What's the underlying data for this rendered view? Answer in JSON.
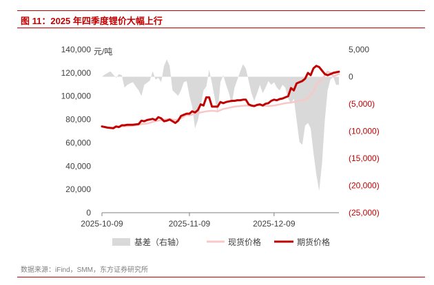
{
  "title": "图 11：2025 年四季度锂价大幅上行",
  "source": "数据来源：iFind，SMM，东方证券研究所",
  "colors": {
    "accent": "#c00000",
    "basis": "#d9d9d9",
    "spot": "#f8c8c8",
    "futures": "#c00000",
    "negative": "#c00000"
  },
  "chart_data": {
    "type": "line",
    "title": "图 11：2025 年四季度锂价大幅上行",
    "unit_label": "元/吨",
    "x_ticks": [
      "2025-10-09",
      "2025-11-09",
      "2025-12-09"
    ],
    "x_range_days": [
      0,
      84
    ],
    "y_left": {
      "min": 0,
      "max": 140000,
      "ticks": [
        "0",
        "20,000",
        "40,000",
        "60,000",
        "80,000",
        "100,000",
        "120,000",
        "140,000"
      ]
    },
    "y_right": {
      "min": -25000,
      "max": 5000,
      "ticks": [
        {
          "label": "5,000",
          "value": 5000,
          "negative": false
        },
        {
          "label": "0",
          "value": 0,
          "negative": false
        },
        {
          "label": "(5,000)",
          "value": -5000,
          "negative": true
        },
        {
          "label": "(10,000)",
          "value": -10000,
          "negative": true
        },
        {
          "label": "(15,000)",
          "value": -15000,
          "negative": true
        },
        {
          "label": "(20,000)",
          "value": -20000,
          "negative": true
        },
        {
          "label": "(25,000)",
          "value": -25000,
          "negative": true
        }
      ]
    },
    "series": [
      {
        "name": "基差（右轴）",
        "type": "area",
        "axis": "right",
        "x": [
          0,
          1,
          3,
          5,
          6,
          7,
          8,
          9,
          10,
          11,
          12,
          13,
          14,
          15,
          17,
          18,
          19,
          20,
          21,
          22,
          23,
          24,
          25,
          26,
          27,
          28,
          29,
          30,
          31,
          32,
          33,
          34,
          35,
          36,
          37,
          38,
          39,
          40,
          41,
          42,
          43,
          44,
          45,
          46,
          47,
          48,
          49,
          50,
          51,
          52,
          53,
          54,
          55,
          56,
          57,
          58,
          59,
          60,
          61,
          62,
          63,
          64,
          65,
          66,
          67,
          68,
          69,
          70,
          71,
          72,
          73,
          74,
          75,
          76,
          77,
          78,
          79,
          80,
          81,
          82,
          83,
          84
        ],
        "values": [
          0,
          400,
          1000,
          -200,
          500,
          300,
          -2000,
          -1500,
          -1200,
          -1000,
          -1800,
          -2500,
          -3500,
          -1500,
          -700,
          1000,
          -500,
          -200,
          -1000,
          2000,
          3200,
          2000,
          -2500,
          -3000,
          -3500,
          -2500,
          -1000,
          -800,
          -3500,
          -5500,
          -9500,
          -8000,
          -5500,
          -2500,
          -1800,
          1300,
          -1200,
          -4000,
          -6800,
          -1000,
          300,
          -1500,
          -3000,
          -5000,
          -2000,
          -500,
          1000,
          2300,
          1500,
          -800,
          -3000,
          -4500,
          -3000,
          -1500,
          -3000,
          -2000,
          -800,
          -1500,
          -1000,
          -2000,
          -2500,
          -1500,
          -2000,
          -4000,
          -5000,
          -4000,
          -8000,
          -12000,
          -12500,
          -9000,
          -8500,
          -9500,
          -14000,
          -18000,
          -21000,
          -16000,
          -8000,
          -2500,
          -500,
          0,
          -1500,
          -1500
        ]
      },
      {
        "name": "现货价格",
        "type": "line",
        "axis": "left",
        "x": [
          0,
          3,
          5,
          7,
          10,
          12,
          14,
          16,
          18,
          20,
          22,
          24,
          25,
          26,
          28,
          30,
          31,
          33,
          35,
          37,
          39,
          41,
          43,
          45,
          47,
          49,
          51,
          53,
          55,
          57,
          59,
          61,
          63,
          65,
          67,
          69,
          71,
          72,
          73,
          74,
          75,
          76,
          77,
          78,
          79,
          80,
          81,
          82,
          83,
          84
        ],
        "values": [
          74000,
          72500,
          73500,
          74000,
          74500,
          75000,
          76000,
          76500,
          78000,
          79000,
          80000,
          80500,
          80000,
          79500,
          81000,
          84000,
          83500,
          85000,
          86000,
          87000,
          87500,
          87000,
          89000,
          90000,
          91000,
          91500,
          92000,
          91500,
          92500,
          92000,
          91500,
          92000,
          93000,
          94000,
          94500,
          95500,
          96500,
          97000,
          98500,
          101000,
          104000,
          110000,
          112500,
          114000,
          118000,
          121000,
          120000,
          117000,
          118000,
          119000
        ]
      },
      {
        "name": "期货价格",
        "type": "line",
        "axis": "left",
        "x": [
          0,
          2,
          4,
          5,
          6,
          7,
          8,
          9,
          11,
          13,
          14,
          15,
          16,
          18,
          19,
          20,
          21,
          22,
          23,
          24,
          25,
          26,
          27,
          28,
          29,
          30,
          31,
          32,
          33,
          34,
          35,
          36,
          37,
          38,
          39,
          40,
          41,
          42,
          43,
          44,
          45,
          46,
          47,
          48,
          49,
          50,
          51,
          52,
          53,
          54,
          55,
          56,
          57,
          58,
          59,
          60,
          61,
          62,
          63,
          64,
          65,
          66,
          67,
          68,
          69,
          70,
          71,
          72,
          73,
          74,
          75,
          76,
          77,
          78,
          79,
          80,
          81,
          82,
          83,
          84
        ],
        "values": [
          74000,
          73000,
          72500,
          74000,
          73500,
          75000,
          75000,
          75500,
          75500,
          76000,
          79000,
          78500,
          79500,
          80500,
          79500,
          82000,
          81000,
          78500,
          79000,
          80000,
          78500,
          77000,
          79000,
          83000,
          84000,
          85000,
          85000,
          87000,
          86000,
          88000,
          93000,
          92000,
          99000,
          99000,
          91000,
          91000,
          91000,
          95000,
          94000,
          95000,
          95500,
          96000,
          96000,
          96500,
          96500,
          97000,
          97000,
          93000,
          92000,
          91500,
          92500,
          93000,
          92000,
          93500,
          94000,
          96000,
          97000,
          96500,
          97500,
          98000,
          99000,
          100000,
          107000,
          105000,
          111000,
          112000,
          113000,
          115000,
          120000,
          118000,
          124000,
          126000,
          125000,
          122000,
          119000,
          118000,
          119000,
          120000,
          120500,
          121000
        ]
      }
    ],
    "legend": [
      "基差（右轴）",
      "现货价格",
      "期货价格"
    ],
    "legend_position": "bottom",
    "grid": false
  }
}
